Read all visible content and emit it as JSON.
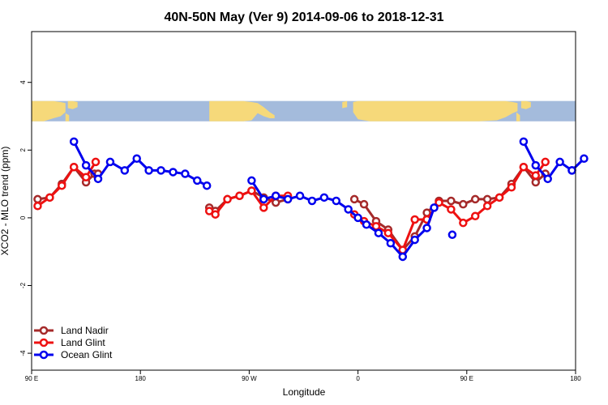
{
  "chart_data": {
    "type": "line",
    "title": "40N-50N May (Ver 9)   2014-09-06 to 2018-12-31",
    "xlabel": "Longitude",
    "ylabel": "XCO2 - MLO trend (ppm)",
    "x_ticks": [
      {
        "value": 90,
        "label": "90 E"
      },
      {
        "value": 180,
        "label": "180"
      },
      {
        "value": 270,
        "label": "90 W"
      },
      {
        "value": 360,
        "label": "0"
      },
      {
        "value": 450,
        "label": "90 E"
      },
      {
        "value": 540,
        "label": "180"
      }
    ],
    "y_ticks": [
      {
        "value": -4,
        "label": "-4"
      },
      {
        "value": -2,
        "label": "-2"
      },
      {
        "value": 0,
        "label": "0"
      },
      {
        "value": 2,
        "label": "2"
      },
      {
        "value": 4,
        "label": "4"
      }
    ],
    "xlim": [
      90,
      540
    ],
    "ylim": [
      -4.5,
      5.5
    ],
    "legend_position": "bottom-left",
    "map_strip": {
      "y_range": [
        2.85,
        3.45
      ],
      "ocean_color": "#a4bbdc",
      "land_color": "#f6d97a"
    },
    "series": [
      {
        "name": "Land Nadir",
        "color": "#a52a2a",
        "segments": [
          [
            [
              95,
              0.55
            ],
            [
              105,
              0.6
            ],
            [
              115,
              1.0
            ],
            [
              125,
              1.5
            ],
            [
              135,
              1.05
            ],
            [
              142,
              1.3
            ],
            [
              145,
              1.3
            ]
          ],
          [
            [
              237,
              0.3
            ],
            [
              242,
              0.2
            ],
            [
              252,
              0.55
            ],
            [
              262,
              0.65
            ],
            [
              272,
              0.8
            ],
            [
              282,
              0.6
            ],
            [
              292,
              0.45
            ],
            [
              302,
              0.55
            ]
          ],
          [
            [
              357,
              0.55
            ],
            [
              365,
              0.4
            ],
            [
              375,
              -0.1
            ],
            [
              385,
              -0.35
            ],
            [
              397,
              -0.95
            ],
            [
              407,
              -0.55
            ],
            [
              417,
              0.15
            ],
            [
              427,
              0.5
            ],
            [
              437,
              0.5
            ],
            [
              447,
              0.4
            ],
            [
              457,
              0.55
            ],
            [
              467,
              0.55
            ],
            [
              477,
              0.6
            ],
            [
              487,
              1.0
            ],
            [
              497,
              1.5
            ],
            [
              507,
              1.05
            ],
            [
              515,
              1.3
            ]
          ]
        ]
      },
      {
        "name": "Land Glint",
        "color": "#ee1111",
        "segments": [
          [
            [
              95,
              0.35
            ],
            [
              105,
              0.6
            ],
            [
              115,
              0.95
            ],
            [
              125,
              1.5
            ],
            [
              135,
              1.2
            ],
            [
              143,
              1.65
            ]
          ],
          [
            [
              237,
              0.2
            ],
            [
              242,
              0.1
            ],
            [
              252,
              0.55
            ],
            [
              262,
              0.65
            ],
            [
              272,
              0.8
            ],
            [
              282,
              0.3
            ],
            [
              292,
              0.65
            ],
            [
              302,
              0.65
            ]
          ],
          [
            [
              357,
              0.1
            ],
            [
              365,
              -0.1
            ],
            [
              375,
              -0.25
            ],
            [
              385,
              -0.45
            ],
            [
              397,
              -0.95
            ],
            [
              407,
              -0.05
            ],
            [
              417,
              -0.05
            ],
            [
              427,
              0.45
            ],
            [
              437,
              0.25
            ],
            [
              447,
              -0.15
            ],
            [
              457,
              0.05
            ],
            [
              467,
              0.35
            ],
            [
              477,
              0.6
            ],
            [
              487,
              0.9
            ],
            [
              497,
              1.5
            ],
            [
              507,
              1.25
            ],
            [
              515,
              1.65
            ]
          ]
        ]
      },
      {
        "name": "Ocean Glint",
        "color": "#0000ee",
        "segments": [
          [
            [
              125,
              2.25
            ],
            [
              135,
              1.55
            ],
            [
              145,
              1.15
            ],
            [
              155,
              1.65
            ],
            [
              167,
              1.4
            ],
            [
              177,
              1.75
            ],
            [
              187,
              1.4
            ],
            [
              197,
              1.4
            ],
            [
              207,
              1.35
            ],
            [
              217,
              1.3
            ],
            [
              227,
              1.1
            ],
            [
              235,
              0.95
            ]
          ],
          [
            [
              272,
              1.1
            ],
            [
              282,
              0.55
            ],
            [
              292,
              0.65
            ],
            [
              302,
              0.55
            ],
            [
              312,
              0.65
            ],
            [
              322,
              0.5
            ],
            [
              332,
              0.6
            ],
            [
              342,
              0.5
            ],
            [
              352,
              0.25
            ],
            [
              360,
              0.0
            ],
            [
              367,
              -0.2
            ],
            [
              377,
              -0.45
            ],
            [
              387,
              -0.75
            ],
            [
              397,
              -1.15
            ],
            [
              407,
              -0.65
            ],
            [
              417,
              -0.3
            ],
            [
              423,
              0.3
            ]
          ],
          [
            [
              438,
              -0.5
            ]
          ],
          [
            [
              497,
              2.25
            ],
            [
              507,
              1.55
            ],
            [
              517,
              1.15
            ],
            [
              527,
              1.65
            ],
            [
              537,
              1.4
            ],
            [
              537,
              1.4
            ],
            [
              547,
              1.75
            ]
          ]
        ]
      }
    ]
  }
}
